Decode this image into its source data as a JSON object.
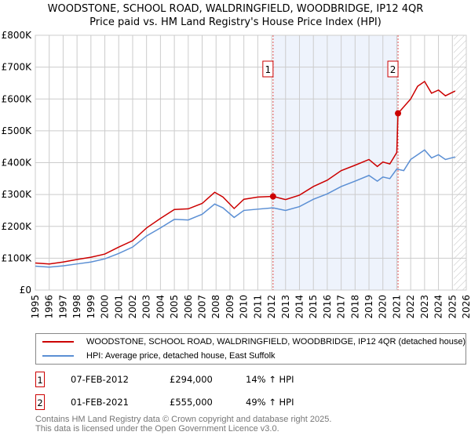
{
  "title": "WOODSTONE, SCHOOL ROAD, WALDRINGFIELD, WOODBRIDGE, IP12 4QR",
  "subtitle": "Price paid vs. HM Land Registry's House Price Index (HPI)",
  "colors": {
    "property": "#cc0000",
    "hpi": "#5b8fd4",
    "shade": "#eef3fc"
  },
  "chart_data": {
    "type": "line",
    "xlim": [
      1995,
      2026
    ],
    "ylim": [
      0,
      800000
    ],
    "yticks": [
      {
        "v": 0,
        "label": "£0"
      },
      {
        "v": 100000,
        "label": "£100K"
      },
      {
        "v": 200000,
        "label": "£200K"
      },
      {
        "v": 300000,
        "label": "£300K"
      },
      {
        "v": 400000,
        "label": "£400K"
      },
      {
        "v": 500000,
        "label": "£500K"
      },
      {
        "v": 600000,
        "label": "£600K"
      },
      {
        "v": 700000,
        "label": "£700K"
      },
      {
        "v": 800000,
        "label": "£800K"
      }
    ],
    "xticks": [
      "1995",
      "1996",
      "1997",
      "1998",
      "1999",
      "2000",
      "2001",
      "2002",
      "2003",
      "2004",
      "2005",
      "2006",
      "2007",
      "2008",
      "2009",
      "2010",
      "2011",
      "2012",
      "2013",
      "2014",
      "2015",
      "2016",
      "2017",
      "2018",
      "2019",
      "2020",
      "2021",
      "2022",
      "2023",
      "2024",
      "2025",
      "2026"
    ],
    "series": [
      {
        "name": "WOODSTONE, SCHOOL ROAD, WALDRINGFIELD, WOODBRIDGE, IP12 4QR (detached house)",
        "color": "#cc0000",
        "x": [
          1995,
          1996,
          1997,
          1998,
          1999,
          2000,
          2001,
          2002,
          2003,
          2004,
          2005,
          2006,
          2007,
          2007.9,
          2008.5,
          2009.3,
          2010,
          2011,
          2012.1,
          2013,
          2014,
          2015,
          2016,
          2017,
          2018,
          2019,
          2019.6,
          2020,
          2020.5,
          2021.0,
          2021.09,
          2022,
          2022.5,
          2023,
          2023.5,
          2024,
          2024.5,
          2025.2
        ],
        "y": [
          85000,
          82000,
          88000,
          96000,
          103000,
          113000,
          135000,
          155000,
          195000,
          225000,
          253000,
          255000,
          272000,
          307000,
          292000,
          256000,
          285000,
          292000,
          294000,
          284000,
          298000,
          325000,
          345000,
          375000,
          392000,
          410000,
          388000,
          402000,
          396000,
          432000,
          555000,
          600000,
          640000,
          655000,
          618000,
          628000,
          610000,
          625000
        ]
      },
      {
        "name": "HPI: Average price, detached house, East Suffolk",
        "color": "#5b8fd4",
        "x": [
          1995,
          1996,
          1997,
          1998,
          1999,
          2000,
          2001,
          2002,
          2003,
          2004,
          2005,
          2006,
          2007,
          2007.9,
          2008.5,
          2009.3,
          2010,
          2011,
          2012.1,
          2013,
          2014,
          2015,
          2016,
          2017,
          2018,
          2019,
          2019.6,
          2020,
          2020.5,
          2021.0,
          2021.5,
          2022,
          2022.5,
          2023,
          2023.5,
          2024,
          2024.5,
          2025.2
        ],
        "y": [
          75000,
          72000,
          76000,
          82000,
          88000,
          98000,
          115000,
          135000,
          170000,
          195000,
          222000,
          220000,
          238000,
          270000,
          258000,
          228000,
          250000,
          254000,
          258000,
          250000,
          262000,
          285000,
          302000,
          325000,
          342000,
          360000,
          342000,
          355000,
          350000,
          380000,
          375000,
          410000,
          425000,
          440000,
          415000,
          425000,
          410000,
          418000
        ]
      }
    ],
    "sales": [
      {
        "label": "1",
        "x": 2012.1,
        "y": 294000
      },
      {
        "label": "2",
        "x": 2021.09,
        "y": 555000
      }
    ],
    "shaded_range": [
      2012.1,
      2021.09
    ],
    "hatched_from": 2025.1
  },
  "legend": {
    "property": "WOODSTONE, SCHOOL ROAD, WALDRINGFIELD, WOODBRIDGE, IP12 4QR (detached house)",
    "hpi": "HPI: Average price, detached house, East Suffolk"
  },
  "sales_table": [
    {
      "num": "1",
      "date": "07-FEB-2012",
      "price": "£294,000",
      "hpi": "14% ↑ HPI"
    },
    {
      "num": "2",
      "date": "01-FEB-2021",
      "price": "£555,000",
      "hpi": "49% ↑ HPI"
    }
  ],
  "footer": {
    "line1": "Contains HM Land Registry data © Crown copyright and database right 2025.",
    "line2": "This data is licensed under the Open Government Licence v3.0."
  }
}
